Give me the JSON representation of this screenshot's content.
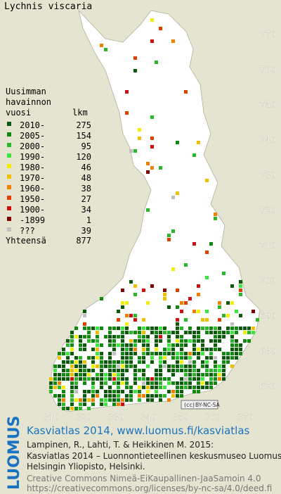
{
  "title": "Lychnis viscaria",
  "legend": {
    "header": [
      "Uusimman",
      "havainnon"
    ],
    "col_year": "vuosi",
    "col_count": "lkm",
    "rows": [
      {
        "label": "2010-",
        "count": 275,
        "color": "#0a5a0a"
      },
      {
        "label": "2005-",
        "count": 154,
        "color": "#0f8a0f"
      },
      {
        "label": "2000-",
        "count": 95,
        "color": "#2ab82a"
      },
      {
        "label": "1990-",
        "count": 120,
        "color": "#3ce63c"
      },
      {
        "label": "1980-",
        "count": 46,
        "color": "#f0f000"
      },
      {
        "label": "1970-",
        "count": 48,
        "color": "#f0c000"
      },
      {
        "label": "1960-",
        "count": 38,
        "color": "#f08000"
      },
      {
        "label": "1950-",
        "count": 27,
        "color": "#e04000"
      },
      {
        "label": "1900-",
        "count": 34,
        "color": "#d01010"
      },
      {
        "label": "-1899",
        "count": 1,
        "color": "#800000"
      },
      {
        "label": "???",
        "count": 39,
        "color": "#c0c0c0"
      }
    ],
    "total_label": "Yhteensä",
    "total": 877
  },
  "grid": {
    "north": [
      770,
      760,
      750,
      740,
      730,
      720,
      710,
      700,
      690,
      680,
      670
    ],
    "east": [
      310,
      320,
      330,
      340,
      350,
      360,
      370
    ]
  },
  "license_badge": "BY-NC-SA",
  "footer": {
    "brand": "LUOMUS",
    "headline": "Kasviatlas 2014, www.luomus.fi/kasviatlas",
    "citation": [
      "Lampinen, R., Lahti, T. & Heikkinen M. 2015:",
      "Kasviatlas 2014 – Luonnontieteellinen keskusmuseo Luomus,",
      "Helsingin Yliopisto, Helsinki."
    ],
    "license": [
      "Creative Commons Nimeä-EiKaupallinen-JaaSamoin 4.0",
      "https://creativecommons.org/licenses/by-nc-sa/4.0/deed.fi"
    ]
  }
}
